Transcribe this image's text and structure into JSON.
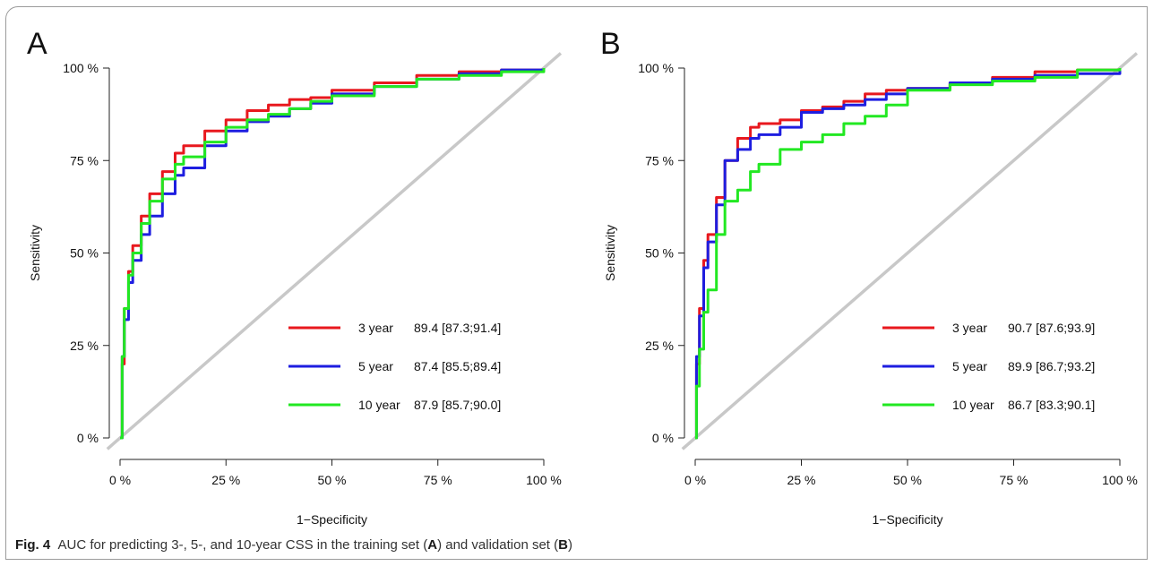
{
  "caption": {
    "label": "Fig. 4",
    "text_1": "AUC for predicting 3-, 5-, and 10-year CSS in the training set (",
    "ref_a": "A",
    "text_2": ") and validation set (",
    "ref_b": "B",
    "text_3": ")"
  },
  "colors": {
    "three_year": "#e8181e",
    "five_year": "#1e1ee0",
    "ten_year": "#22e822",
    "diagonal": "#c8c8c8"
  },
  "chart_data": [
    {
      "type": "line",
      "panel_label": "A",
      "xlabel": "1−Specificity",
      "ylabel": "Sensitivity",
      "xlim": [
        0,
        100
      ],
      "ylim": [
        0,
        100
      ],
      "x_ticks": [
        "0 %",
        "25 %",
        "50 %",
        "75 %",
        "100 %"
      ],
      "y_ticks": [
        "0 %",
        "25 %",
        "50 %",
        "75 %",
        "100 %"
      ],
      "grid": false,
      "legend_position": "bottom-right",
      "series": [
        {
          "name": "3 year",
          "auc": "89.4 [87.3;91.4]",
          "color": "#e8181e",
          "points": [
            [
              0,
              0
            ],
            [
              0.5,
              20
            ],
            [
              1,
              35
            ],
            [
              2,
              45
            ],
            [
              3,
              52
            ],
            [
              5,
              60
            ],
            [
              7,
              66
            ],
            [
              10,
              72
            ],
            [
              13,
              77
            ],
            [
              15,
              79
            ],
            [
              20,
              83
            ],
            [
              25,
              86
            ],
            [
              30,
              88.5
            ],
            [
              35,
              90
            ],
            [
              40,
              91.5
            ],
            [
              45,
              92
            ],
            [
              50,
              94
            ],
            [
              60,
              96
            ],
            [
              70,
              98
            ],
            [
              80,
              99
            ],
            [
              90,
              99.5
            ],
            [
              100,
              100
            ]
          ]
        },
        {
          "name": "5 year",
          "auc": "87.4 [85.5;89.4]",
          "color": "#1e1ee0",
          "points": [
            [
              0,
              0
            ],
            [
              0.5,
              22
            ],
            [
              1,
              32
            ],
            [
              2,
              42
            ],
            [
              3,
              48
            ],
            [
              5,
              55
            ],
            [
              7,
              60
            ],
            [
              10,
              66
            ],
            [
              13,
              71
            ],
            [
              15,
              73
            ],
            [
              20,
              79
            ],
            [
              25,
              83
            ],
            [
              30,
              85.5
            ],
            [
              35,
              87
            ],
            [
              40,
              89
            ],
            [
              45,
              90.5
            ],
            [
              50,
              93
            ],
            [
              60,
              95
            ],
            [
              70,
              97
            ],
            [
              80,
              98.5
            ],
            [
              90,
              99.5
            ],
            [
              100,
              100
            ]
          ]
        },
        {
          "name": "10 year",
          "auc": "87.9 [85.7;90.0]",
          "color": "#22e822",
          "points": [
            [
              0,
              0
            ],
            [
              0.5,
              22
            ],
            [
              1,
              35
            ],
            [
              2,
              44
            ],
            [
              3,
              50
            ],
            [
              5,
              58
            ],
            [
              7,
              64
            ],
            [
              10,
              70
            ],
            [
              13,
              74
            ],
            [
              15,
              76
            ],
            [
              20,
              80
            ],
            [
              25,
              84
            ],
            [
              30,
              86
            ],
            [
              35,
              87.5
            ],
            [
              40,
              89
            ],
            [
              45,
              91
            ],
            [
              50,
              92.5
            ],
            [
              60,
              95
            ],
            [
              70,
              97
            ],
            [
              80,
              98
            ],
            [
              90,
              99
            ],
            [
              100,
              100
            ]
          ]
        }
      ]
    },
    {
      "type": "line",
      "panel_label": "B",
      "xlabel": "1−Specificity",
      "ylabel": "Sensitivity",
      "xlim": [
        0,
        100
      ],
      "ylim": [
        0,
        100
      ],
      "x_ticks": [
        "0 %",
        "25 %",
        "50 %",
        "75 %",
        "100 %"
      ],
      "y_ticks": [
        "0 %",
        "25 %",
        "50 %",
        "75 %",
        "100 %"
      ],
      "grid": false,
      "legend_position": "bottom-right",
      "series": [
        {
          "name": "3 year",
          "auc": "90.7 [87.6;93.9]",
          "color": "#e8181e",
          "points": [
            [
              0,
              0
            ],
            [
              0.3,
              20
            ],
            [
              1,
              35
            ],
            [
              2,
              48
            ],
            [
              3,
              55
            ],
            [
              5,
              65
            ],
            [
              7,
              75
            ],
            [
              10,
              81
            ],
            [
              13,
              84
            ],
            [
              15,
              85
            ],
            [
              20,
              86
            ],
            [
              25,
              88.5
            ],
            [
              30,
              89.5
            ],
            [
              35,
              91
            ],
            [
              40,
              93
            ],
            [
              45,
              94
            ],
            [
              50,
              94.5
            ],
            [
              60,
              96
            ],
            [
              70,
              97.5
            ],
            [
              80,
              99
            ],
            [
              90,
              99.5
            ],
            [
              100,
              100
            ]
          ]
        },
        {
          "name": "5 year",
          "auc": "89.9 [86.7;93.2]",
          "color": "#1e1ee0",
          "points": [
            [
              0,
              0
            ],
            [
              0.3,
              22
            ],
            [
              1,
              33
            ],
            [
              2,
              46
            ],
            [
              3,
              53
            ],
            [
              5,
              63
            ],
            [
              7,
              75
            ],
            [
              10,
              78
            ],
            [
              13,
              81
            ],
            [
              15,
              82
            ],
            [
              20,
              84
            ],
            [
              25,
              88
            ],
            [
              30,
              89
            ],
            [
              35,
              90
            ],
            [
              40,
              91.5
            ],
            [
              45,
              93
            ],
            [
              50,
              94.5
            ],
            [
              60,
              96
            ],
            [
              70,
              97
            ],
            [
              80,
              98
            ],
            [
              90,
              98.5
            ],
            [
              100,
              100
            ]
          ]
        },
        {
          "name": "10 year",
          "auc": "86.7 [83.3;90.1]",
          "color": "#22e822",
          "points": [
            [
              0,
              0
            ],
            [
              0.3,
              14
            ],
            [
              1,
              24
            ],
            [
              2,
              34
            ],
            [
              3,
              40
            ],
            [
              5,
              55
            ],
            [
              7,
              64
            ],
            [
              10,
              67
            ],
            [
              13,
              72
            ],
            [
              15,
              74
            ],
            [
              20,
              78
            ],
            [
              25,
              80
            ],
            [
              30,
              82
            ],
            [
              35,
              85
            ],
            [
              40,
              87
            ],
            [
              45,
              90
            ],
            [
              50,
              94
            ],
            [
              60,
              95.5
            ],
            [
              70,
              96.5
            ],
            [
              80,
              97.5
            ],
            [
              90,
              99.5
            ],
            [
              100,
              100
            ]
          ]
        }
      ]
    }
  ]
}
